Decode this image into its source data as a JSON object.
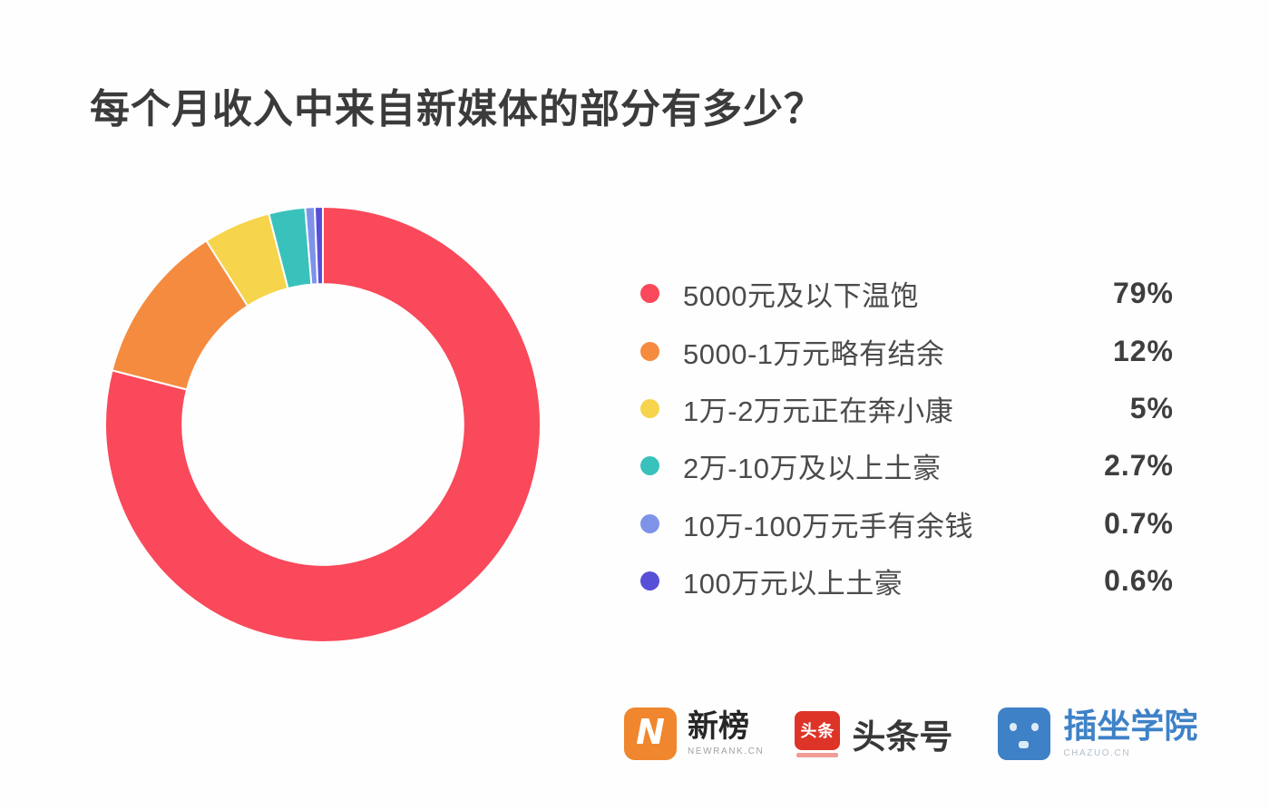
{
  "title": "每个月收入中来自新媒体的部分有多少？",
  "chart_data": {
    "type": "pie",
    "subtype": "donut",
    "title": "每个月收入中来自新媒体的部分有多少？",
    "direction": "clockwise",
    "start_angle_deg": -90,
    "inner_radius_ratio": 0.645,
    "legend_position": "right",
    "series": [
      {
        "label": "5000元及以下温饱",
        "value": 79,
        "display": "79%",
        "color": "#f9495a"
      },
      {
        "label": "5000-1万元略有结余",
        "value": 12,
        "display": "12%",
        "color": "#f58b3f"
      },
      {
        "label": "1万-2万元正在奔小康",
        "value": 5,
        "display": "5%",
        "color": "#f6d44c"
      },
      {
        "label": "2万-10万及以上土豪",
        "value": 2.7,
        "display": "2.7%",
        "color": "#39c2bb"
      },
      {
        "label": "10万-100万元手有余钱",
        "value": 0.7,
        "display": "0.7%",
        "color": "#7e93e8"
      },
      {
        "label": "100万元以上土豪",
        "value": 0.6,
        "display": "0.6%",
        "color": "#584fd9"
      }
    ]
  },
  "footer": {
    "logos": [
      {
        "id": "newrank",
        "name": "新榜",
        "subtitle": "NEWRANK.CN",
        "icon": "newrank-n-bolt-icon",
        "brand_color": "#f0862d",
        "icon_label": "N"
      },
      {
        "id": "toutiao",
        "name": "头条号",
        "icon": "toutiao-red-square-icon",
        "brand_color": "#de3428",
        "icon_label": "头条"
      },
      {
        "id": "chazuo",
        "name": "插坐学院",
        "subtitle": "CHAZUO.CN",
        "icon": "chazuo-face-icon",
        "brand_color": "#3e81c6"
      }
    ]
  }
}
